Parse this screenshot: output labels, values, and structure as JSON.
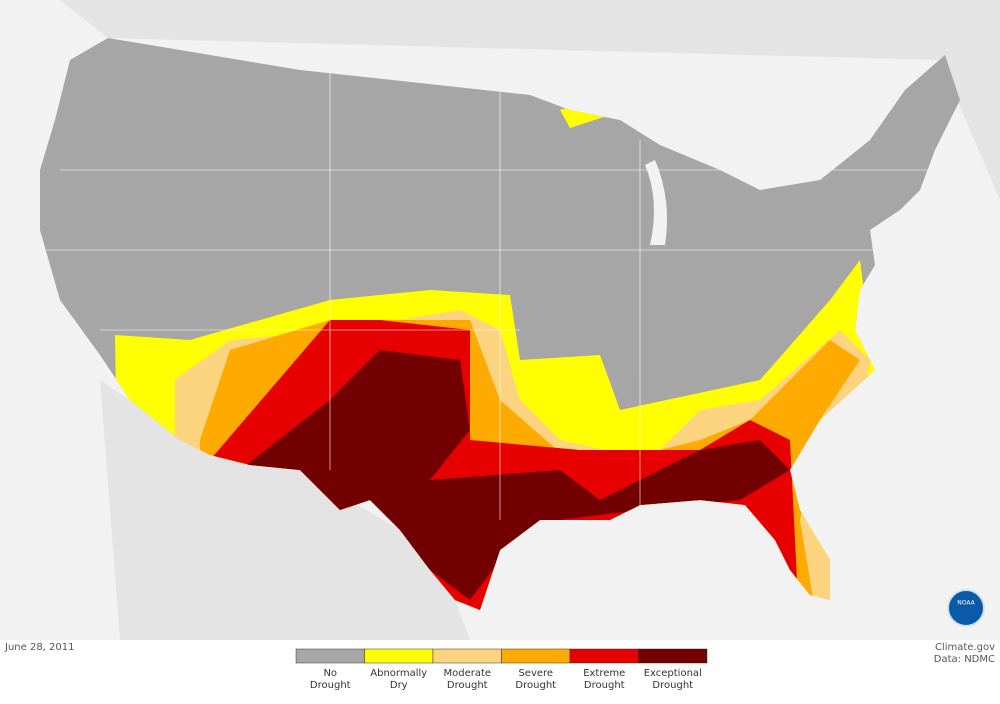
{
  "map": {
    "date": "June 28, 2011",
    "credits": [
      "Climate.gov",
      "Data: NDMC"
    ],
    "logo": "NOAA",
    "legend": [
      {
        "lines": [
          "No",
          "Drought"
        ],
        "color": "#a6a6a6"
      },
      {
        "lines": [
          "Abnormally",
          "Dry"
        ],
        "color": "#ffff00"
      },
      {
        "lines": [
          "Moderate",
          "Drought"
        ],
        "color": "#fcd37f"
      },
      {
        "lines": [
          "Severe",
          "Drought"
        ],
        "color": "#ffaa00"
      },
      {
        "lines": [
          "Extreme",
          "Drought"
        ],
        "color": "#e60000"
      },
      {
        "lines": [
          "Exceptional",
          "Drought"
        ],
        "color": "#730000"
      }
    ]
  }
}
